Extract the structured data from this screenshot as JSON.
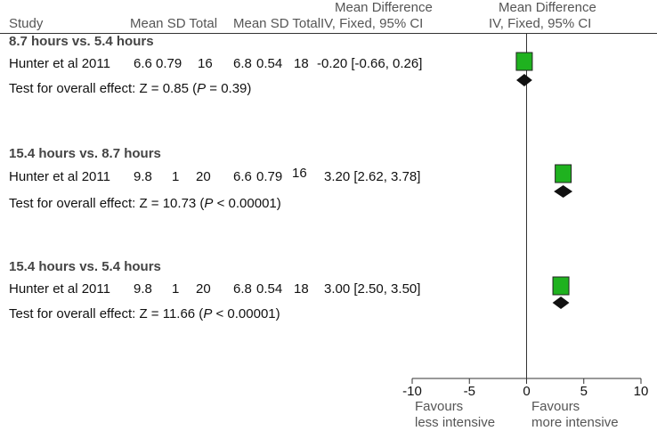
{
  "header": {
    "study": "Study",
    "group1": "Mean  SD  Total",
    "group2": "Mean  SD  Total",
    "ci_col_line1": "Mean Difference",
    "ci_col_line2": "IV, Fixed, 95% CI",
    "plot_col_line1": "Mean Difference",
    "plot_col_line2": "IV, Fixed, 95% CI"
  },
  "chart_data": {
    "type": "forest",
    "xlim": [
      -10,
      10
    ],
    "ticks": [
      -10,
      -5,
      0,
      5,
      10
    ],
    "tick_labels": [
      "-10",
      "-5",
      "0",
      "5",
      "10"
    ],
    "favours_left": [
      "Favours",
      "less intensive"
    ],
    "favours_right": [
      "Favours",
      "more intensive"
    ],
    "subgroups": [
      {
        "title": "8.7 hours vs. 5.4 hours",
        "study": "Hunter et al 2011",
        "mean1": "6.6",
        "sd1": "0.79",
        "n1": "16",
        "mean2": "6.8",
        "sd2": "0.54",
        "n2": "18",
        "ci_text": "-0.20 [-0.66, 0.26]",
        "md": -0.2,
        "lo": -0.66,
        "hi": 0.26,
        "overall_pre": "Test for overall effect: Z = 0.85 (",
        "overall_p": "P",
        "overall_post": " = 0.39)"
      },
      {
        "title": "15.4 hours vs. 8.7 hours",
        "study": "Hunter et al 2011",
        "mean1": "9.8",
        "sd1": "1",
        "n1": "20",
        "mean2": "6.6",
        "sd2": "0.79",
        "n2": "16",
        "ci_text": "3.20 [2.62, 3.78]",
        "md": 3.2,
        "lo": 2.62,
        "hi": 3.78,
        "overall_pre": "Test for overall effect: Z = 10.73 (",
        "overall_p": "P",
        "overall_post": " < 0.00001)"
      },
      {
        "title": "15.4 hours vs. 5.4 hours",
        "study": "Hunter et al 2011",
        "mean1": "9.8",
        "sd1": "1",
        "n1": "20",
        "mean2": "6.8",
        "sd2": "0.54",
        "n2": "18",
        "ci_text": "3.00 [2.50, 3.50]",
        "md": 3.0,
        "lo": 2.5,
        "hi": 3.5,
        "overall_pre": "Test for overall effect: Z = 11.66 (",
        "overall_p": "P",
        "overall_post": " < 0.00001)"
      }
    ]
  }
}
